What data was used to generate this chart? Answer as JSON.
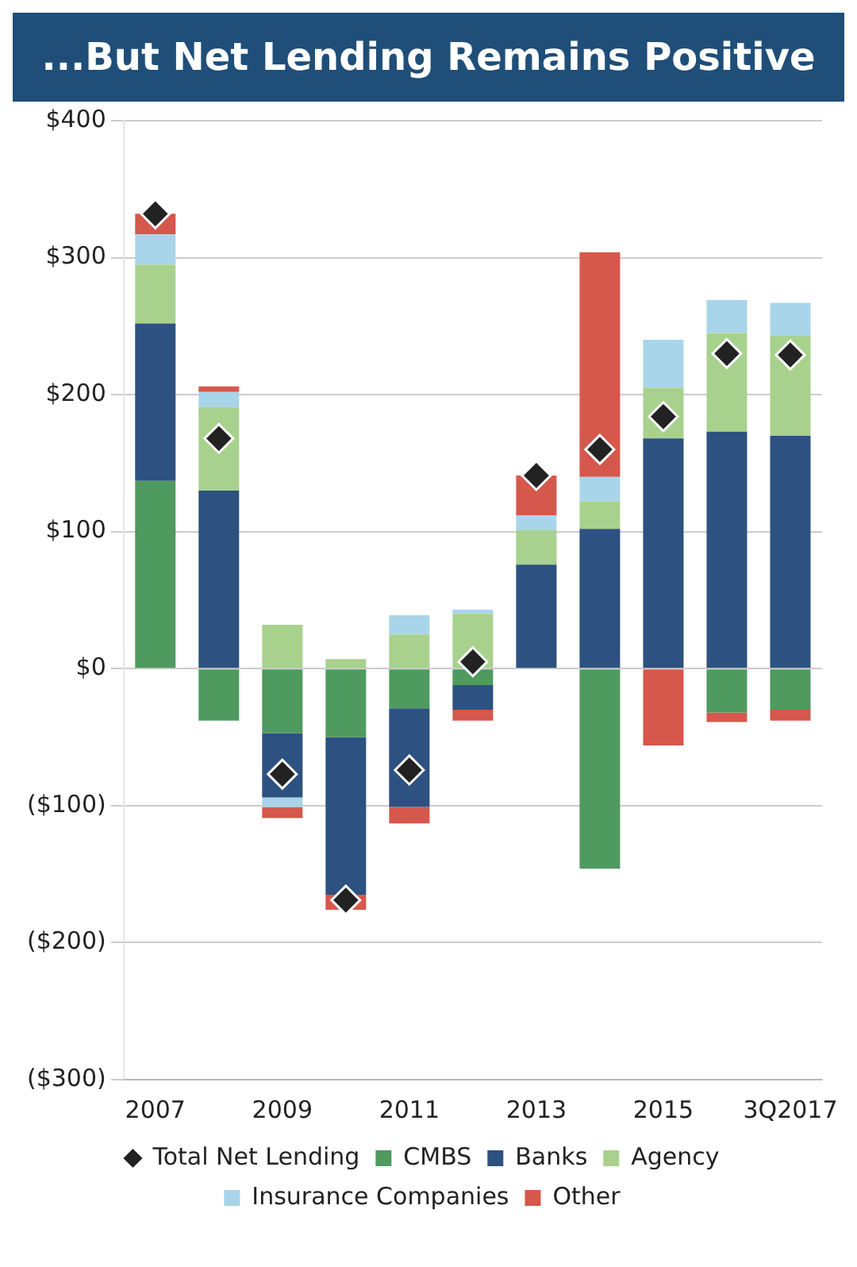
{
  "chart_data": {
    "type": "bar",
    "title": "...But Net Lending Remains Positive",
    "categories": [
      "2007",
      null,
      "2009",
      null,
      "2011",
      null,
      "2013",
      null,
      "2015",
      null,
      "3Q2017"
    ],
    "stacked": true,
    "series": [
      {
        "name": "CMBS",
        "color": "#4e9a5f",
        "values": [
          137,
          -38,
          -47,
          -50,
          -29,
          -12,
          0,
          -146,
          0,
          -32,
          -30
        ]
      },
      {
        "name": "Banks",
        "color": "#2d5180",
        "values": [
          115,
          130,
          -47,
          -115,
          -72,
          -18,
          76,
          102,
          168,
          173,
          170
        ]
      },
      {
        "name": "Agency",
        "color": "#a8d18d",
        "values": [
          43,
          61,
          32,
          7,
          25,
          40,
          25,
          20,
          37,
          72,
          73
        ]
      },
      {
        "name": "Insurance Companies",
        "color": "#a9d5ea",
        "values": [
          22,
          11,
          -7,
          0,
          14,
          3,
          11,
          18,
          35,
          24,
          24
        ]
      },
      {
        "name": "Other",
        "color": "#d6574c",
        "values": [
          15,
          4,
          -8,
          -11,
          -12,
          -8,
          29,
          164,
          -56,
          -7,
          -8
        ]
      },
      {
        "name": "Total Net Lending",
        "type": "scatter",
        "marker": "diamond",
        "color": "#222222",
        "values": [
          332,
          168,
          -77,
          -169,
          -74,
          5,
          141,
          160,
          184,
          230,
          229
        ]
      }
    ],
    "ylim": [
      -300,
      400
    ],
    "yticks": [
      {
        "value": 400,
        "label": "$400"
      },
      {
        "value": 300,
        "label": "$300"
      },
      {
        "value": 200,
        "label": "$200"
      },
      {
        "value": 100,
        "label": "$100"
      },
      {
        "value": 0,
        "label": "$0"
      },
      {
        "value": -100,
        "label": "($100)"
      },
      {
        "value": -200,
        "label": "($200)"
      },
      {
        "value": -300,
        "label": "($300)"
      }
    ],
    "grid": "y",
    "legend": "bottom"
  }
}
